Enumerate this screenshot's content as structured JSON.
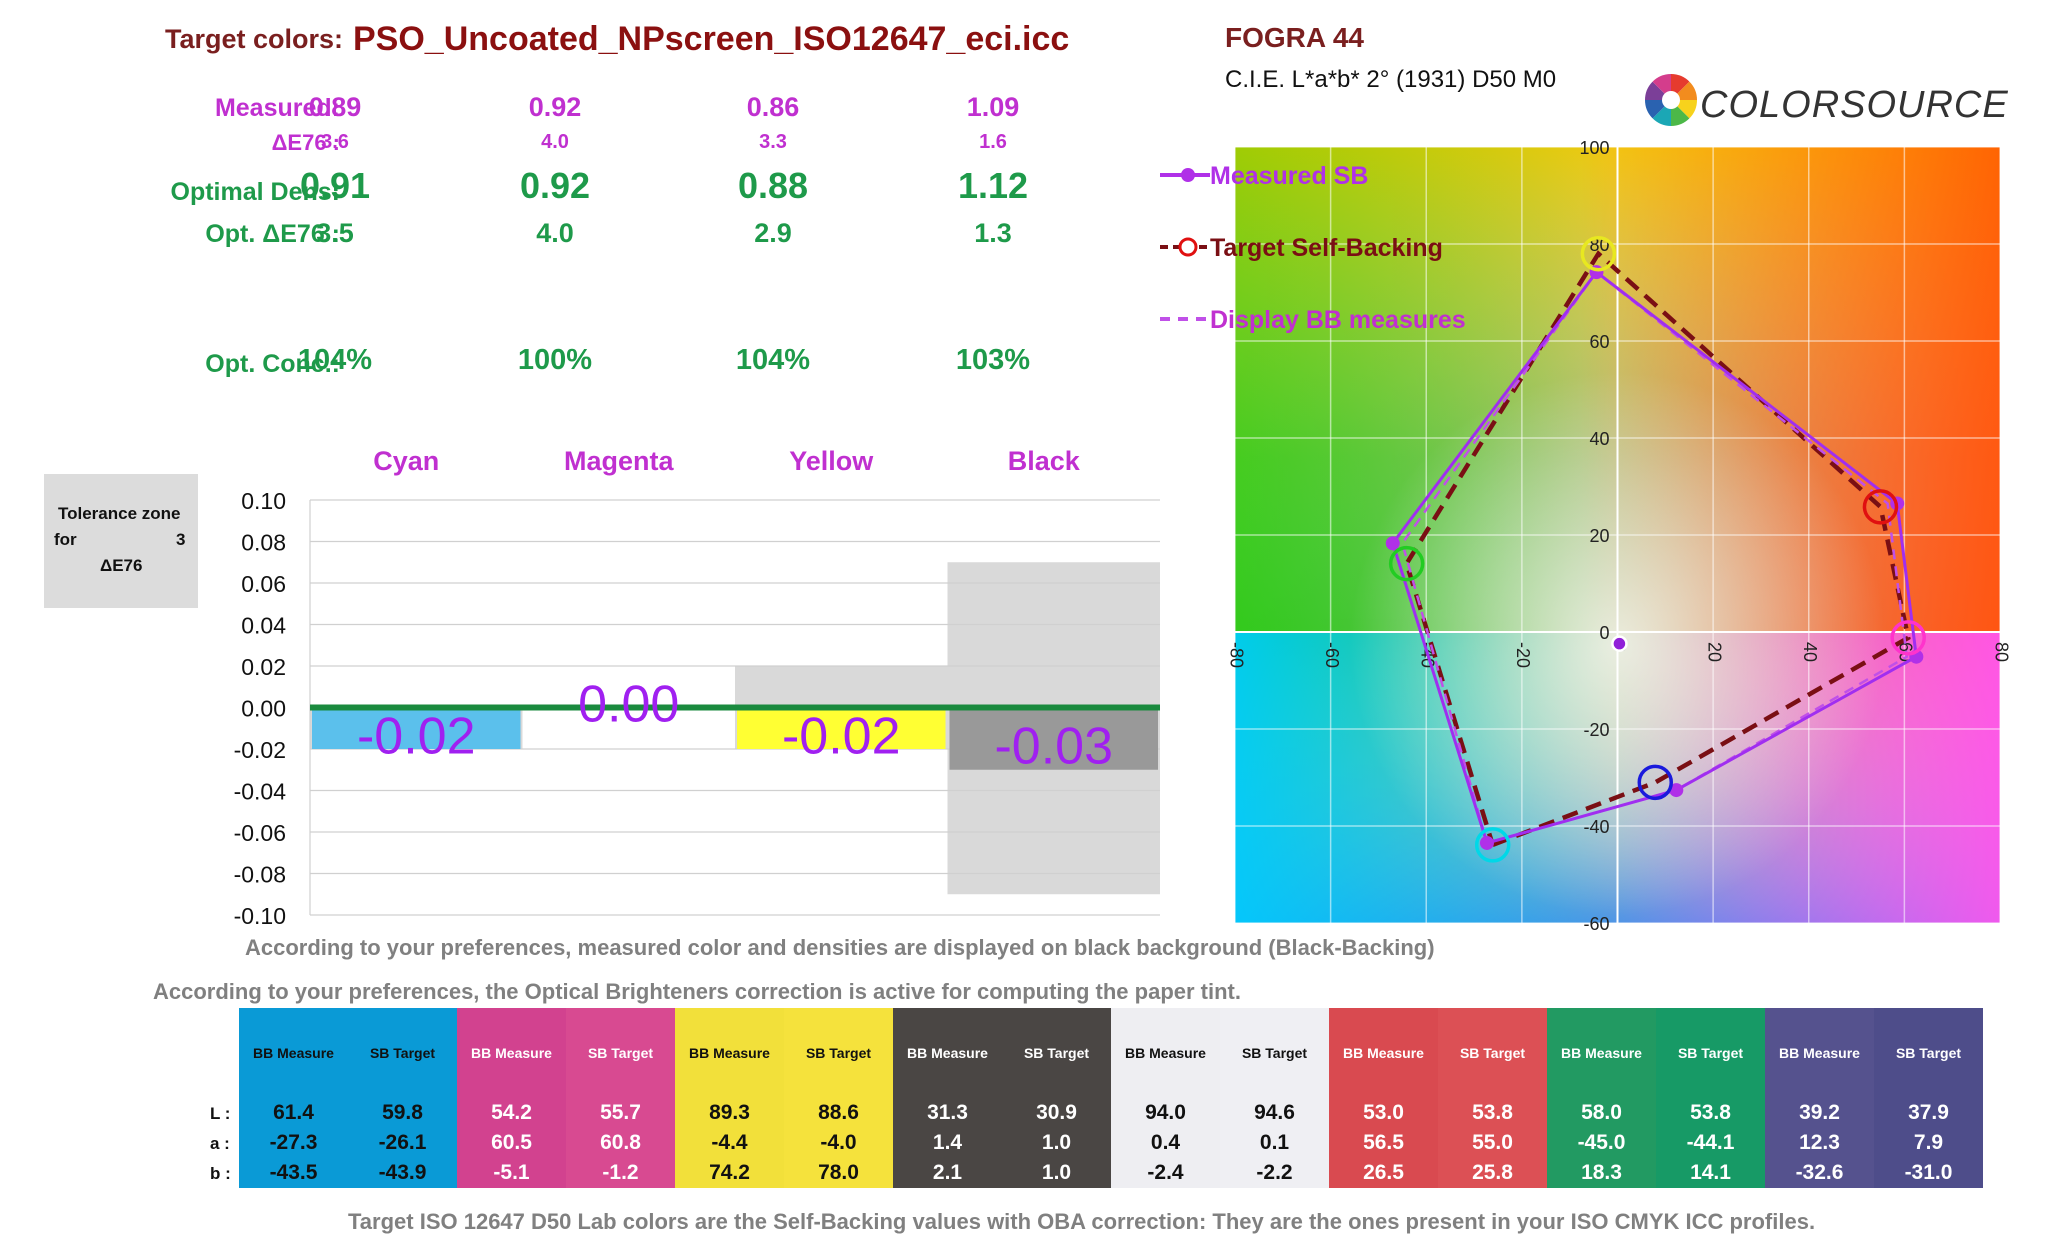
{
  "header": {
    "target_label": "Target colors:",
    "profile": "PSO_Uncoated_NPscreen_ISO12647_eci.icc",
    "standard": "FOGRA 44",
    "illuminant": "C.I.E. L*a*b* 2° (1931) D50  M0",
    "logo_text": "COLORSOURCE"
  },
  "stats": {
    "labels": {
      "measured": "Measured:",
      "delta": "ΔE76 :",
      "optimal": "Optimal Dens:",
      "opt_delta": "Opt. ΔE76 :",
      "opt_conc": "Opt. Conc.:"
    },
    "columns": [
      {
        "measured": "0.89",
        "delta": "3.6",
        "optimal": "0.91",
        "opt_delta": "3.5",
        "opt_conc": "104%"
      },
      {
        "measured": "0.92",
        "delta": "4.0",
        "optimal": "0.92",
        "opt_delta": "4.0",
        "opt_conc": "100%"
      },
      {
        "measured": "0.86",
        "delta": "3.3",
        "optimal": "0.88",
        "opt_delta": "2.9",
        "opt_conc": "104%"
      },
      {
        "measured": "1.09",
        "delta": "1.6",
        "optimal": "1.12",
        "opt_delta": "1.3",
        "opt_conc": "103%"
      }
    ]
  },
  "tolerance": {
    "line1": "Tolerance zone",
    "line2": "for",
    "value": "3",
    "line3": "ΔE76"
  },
  "chart_data": [
    {
      "type": "bar",
      "categories": [
        "Cyan",
        "Magenta",
        "Yellow",
        "Black"
      ],
      "values": [
        -0.02,
        0.0,
        -0.02,
        -0.03
      ],
      "value_labels": [
        "-0.02",
        "0.00",
        "-0.02",
        "-0.03"
      ],
      "tolerance_ranges": [
        [
          -0.02,
          0.0
        ],
        [
          0.0,
          0.0
        ],
        [
          -0.02,
          0.02
        ],
        [
          -0.09,
          0.07
        ]
      ],
      "bar_colors": [
        "#5bc0ec",
        "#d24a97",
        "#ffff33",
        "#999999"
      ],
      "ylim": [
        -0.1,
        0.1
      ],
      "yticks": [
        "0.10",
        "0.08",
        "0.06",
        "0.04",
        "0.02",
        "0.00",
        "-0.02",
        "-0.04",
        "-0.06",
        "-0.08",
        "-0.10"
      ],
      "grid": true
    },
    {
      "type": "scatter",
      "xlim": [
        -80,
        80
      ],
      "ylim": [
        -60,
        100
      ],
      "xticks": [
        "-80",
        "-60",
        "-40",
        "-20",
        "0",
        "20",
        "40",
        "60",
        "80"
      ],
      "yticks": [
        "100",
        "80",
        "60",
        "40",
        "20",
        "0",
        "-20",
        "-40",
        "-60"
      ],
      "legend_placement": "top-left",
      "series": [
        {
          "name": "Measured SB",
          "points": [
            [
              -27.3,
              -43.5
            ],
            [
              12.3,
              -32.6
            ],
            [
              62.5,
              -5.1
            ],
            [
              58.5,
              26.5
            ],
            [
              -4.4,
              74.2
            ],
            [
              -47.0,
              18.3
            ],
            [
              -27.3,
              -43.5
            ]
          ]
        },
        {
          "name": "Target Self-Backing",
          "points": [
            [
              -26.1,
              -43.9
            ],
            [
              7.9,
              -31.0
            ],
            [
              60.8,
              -1.2
            ],
            [
              55.0,
              25.8
            ],
            [
              -4.0,
              78.0
            ],
            [
              -44.1,
              14.1
            ],
            [
              -26.1,
              -43.9
            ]
          ]
        },
        {
          "name": "Display BB measures",
          "points": [
            [
              -27.3,
              -43.5
            ],
            [
              12.3,
              -32.6
            ],
            [
              60.5,
              -5.1
            ],
            [
              56.5,
              26.5
            ],
            [
              -4.4,
              74.2
            ],
            [
              -45.0,
              18.3
            ],
            [
              -27.3,
              -43.5
            ]
          ]
        }
      ],
      "target_circles": [
        {
          "x": -26.1,
          "y": -43.9,
          "color": "#00d8e8"
        },
        {
          "x": 7.9,
          "y": -31.0,
          "color": "#1a1adc"
        },
        {
          "x": 60.8,
          "y": -1.2,
          "color": "#ff33cc"
        },
        {
          "x": 55.0,
          "y": 25.8,
          "color": "#e01010"
        },
        {
          "x": -4.0,
          "y": 78.0,
          "color": "#e8e820"
        },
        {
          "x": -44.1,
          "y": 14.1,
          "color": "#22cc22"
        }
      ],
      "paper_point": {
        "x": 0.4,
        "y": -2.4
      }
    }
  ],
  "notes": {
    "backing": "According to your preferences, measured color and densities are displayed on black background (Black-Backing)",
    "oba": "According to your preferences, the Optical Brighteners correction is active for computing the paper tint.",
    "footer": "Target ISO 12647 D50 Lab colors are the Self-Backing values with OBA correction: They are the ones present in your ISO CMYK ICC profiles."
  },
  "lab_table": {
    "row_keys": [
      "L :",
      "a :",
      "b :"
    ],
    "columns": [
      {
        "header": "BB Measure",
        "bg": "#0a9ad6",
        "fg": "#111111",
        "L": "61.4",
        "a": "-27.3",
        "b": "-43.5"
      },
      {
        "header": "SB Target",
        "bg": "#0a9ad6",
        "fg": "#111111",
        "L": "59.8",
        "a": "-26.1",
        "b": "-43.9"
      },
      {
        "header": "BB Measure",
        "bg": "#d2428f",
        "fg": "#ffffff",
        "L": "54.2",
        "a": "60.5",
        "b": "-5.1"
      },
      {
        "header": "SB Target",
        "bg": "#d84a91",
        "fg": "#ffffff",
        "L": "55.7",
        "a": "60.8",
        "b": "-1.2"
      },
      {
        "header": "BB Measure",
        "bg": "#f2e03a",
        "fg": "#111111",
        "L": "89.3",
        "a": "-4.4",
        "b": "74.2"
      },
      {
        "header": "SB Target",
        "bg": "#f5e23c",
        "fg": "#111111",
        "L": "88.6",
        "a": "-4.0",
        "b": "78.0"
      },
      {
        "header": "BB Measure",
        "bg": "#4a4644",
        "fg": "#ffffff",
        "L": "31.3",
        "a": "1.4",
        "b": "2.1"
      },
      {
        "header": "SB Target",
        "bg": "#4a4644",
        "fg": "#ffffff",
        "L": "30.9",
        "a": "1.0",
        "b": "1.0"
      },
      {
        "header": "BB Measure",
        "bg": "#eeeef2",
        "fg": "#111111",
        "L": "94.0",
        "a": "0.4",
        "b": "-2.4"
      },
      {
        "header": "SB Target",
        "bg": "#efeff3",
        "fg": "#111111",
        "L": "94.6",
        "a": "0.1",
        "b": "-2.2"
      },
      {
        "header": "BB Measure",
        "bg": "#d94a50",
        "fg": "#ffffff",
        "L": "53.0",
        "a": "56.5",
        "b": "26.5"
      },
      {
        "header": "SB Target",
        "bg": "#dc5055",
        "fg": "#ffffff",
        "L": "53.8",
        "a": "55.0",
        "b": "25.8"
      },
      {
        "header": "BB Measure",
        "bg": "#229a62",
        "fg": "#ffffff",
        "L": "58.0",
        "a": "-45.0",
        "b": "18.3"
      },
      {
        "header": "SB Target",
        "bg": "#179a66",
        "fg": "#ffffff",
        "L": "53.8",
        "a": "-44.1",
        "b": "14.1"
      },
      {
        "header": "BB Measure",
        "bg": "#55528e",
        "fg": "#ffffff",
        "L": "39.2",
        "a": "12.3",
        "b": "-32.6"
      },
      {
        "header": "SB Target",
        "bg": "#4e4d8a",
        "fg": "#ffffff",
        "L": "37.9",
        "a": "7.9",
        "b": "-31.0"
      }
    ]
  }
}
